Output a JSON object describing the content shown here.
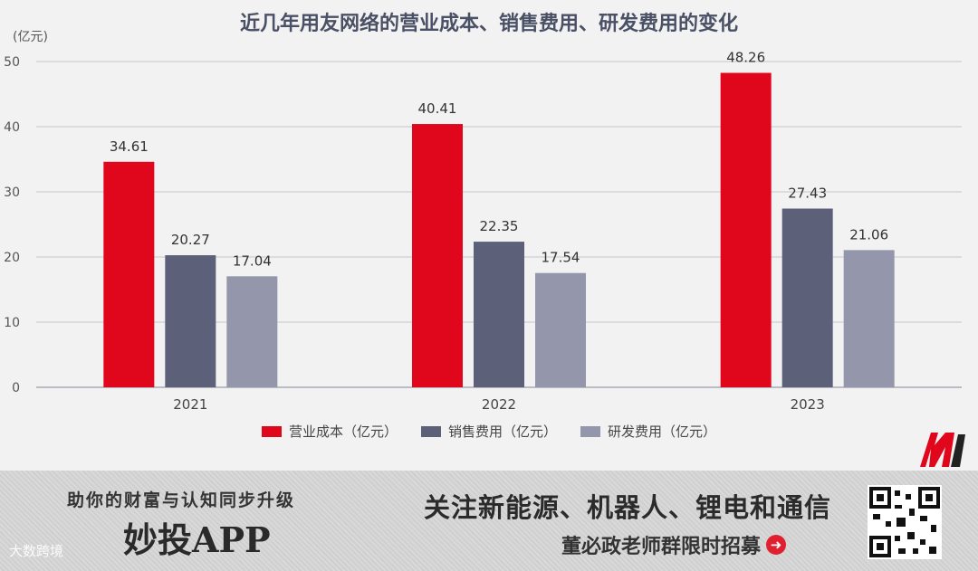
{
  "chart_data": {
    "type": "bar",
    "title": "近几年用友网络的营业成本、销售费用、研发费用的变化",
    "unit_label": "(亿元)",
    "categories": [
      "2021",
      "2022",
      "2023"
    ],
    "series": [
      {
        "name": "营业成本（亿元）",
        "values": [
          34.61,
          40.41,
          48.26
        ],
        "color": "#e0061c"
      },
      {
        "name": "销售费用（亿元）",
        "values": [
          20.27,
          22.35,
          27.43
        ],
        "color": "#5c6078"
      },
      {
        "name": "研发费用（亿元）",
        "values": [
          17.04,
          17.54,
          21.06
        ],
        "color": "#9497ac"
      }
    ],
    "value_labels": [
      [
        "34.61",
        "40.41",
        "48.26"
      ],
      [
        "20.27",
        "22.35",
        "27.43"
      ],
      [
        "17.04",
        "17.54",
        "21.06"
      ]
    ],
    "yticks": [
      "0",
      "10",
      "20",
      "30",
      "40",
      "50"
    ],
    "ylim": [
      0,
      50
    ],
    "grid": true,
    "legend": "bottom"
  },
  "banner": {
    "left_top": "助你的财富与认知同步升级",
    "app_name": "妙投APP",
    "watermark": "大数跨境",
    "right_top": "关注新能源、机器人、锂电和通信",
    "right_bottom": "董必政老师群限时招募",
    "arrow_icon": "arrow-right-circle-icon",
    "accent_color": "#e0202e"
  }
}
